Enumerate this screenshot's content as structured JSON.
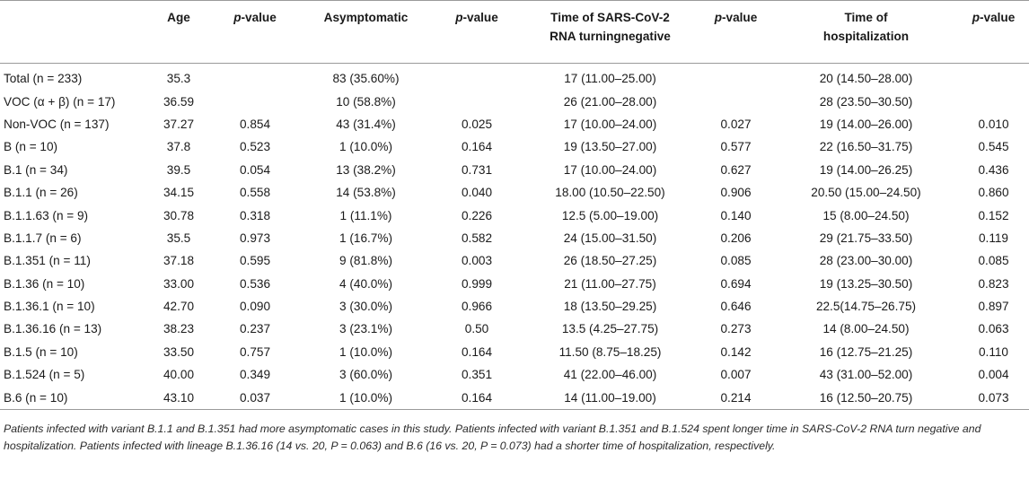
{
  "header": {
    "variant": "",
    "age": "Age",
    "p1": "p",
    "p1_suffix": "-value",
    "asymptomatic": "Asymptomatic",
    "p2": "p",
    "p2_suffix": "-value",
    "turn_line1": "Time of SARS-CoV-2",
    "turn_line2": "RNA turningnegative",
    "p3": "p",
    "p3_suffix": "-value",
    "hosp_line1": "Time of",
    "hosp_line2": "hospitalization",
    "p4": "p",
    "p4_suffix": "-value"
  },
  "rows": [
    {
      "variant": "Total (n = 233)",
      "age": "35.3",
      "p_age": "",
      "asym": "83 (35.60%)",
      "p_asym": "",
      "turn": "17 (11.00–25.00)",
      "p_turn": "",
      "hosp": "20 (14.50–28.00)",
      "p_hosp": ""
    },
    {
      "variant": "VOC (α + β) (n = 17)",
      "age": "36.59",
      "p_age": "",
      "asym": "10 (58.8%)",
      "p_asym": "",
      "turn": "26 (21.00–28.00)",
      "p_turn": "",
      "hosp": "28 (23.50–30.50)",
      "p_hosp": ""
    },
    {
      "variant": "Non-VOC (n = 137)",
      "age": "37.27",
      "p_age": "0.854",
      "asym": "43 (31.4%)",
      "p_asym": "0.025",
      "turn": "17 (10.00–24.00)",
      "p_turn": "0.027",
      "hosp": "19 (14.00–26.00)",
      "p_hosp": "0.010"
    },
    {
      "variant": "B (n = 10)",
      "age": "37.8",
      "p_age": "0.523",
      "asym": "1 (10.0%)",
      "p_asym": "0.164",
      "turn": "19 (13.50–27.00)",
      "p_turn": "0.577",
      "hosp": "22 (16.50–31.75)",
      "p_hosp": "0.545"
    },
    {
      "variant": "B.1 (n = 34)",
      "age": "39.5",
      "p_age": "0.054",
      "asym": "13 (38.2%)",
      "p_asym": "0.731",
      "turn": "17 (10.00–24.00)",
      "p_turn": "0.627",
      "hosp": "19 (14.00–26.25)",
      "p_hosp": "0.436"
    },
    {
      "variant": "B.1.1 (n = 26)",
      "age": "34.15",
      "p_age": "0.558",
      "asym": "14 (53.8%)",
      "p_asym": "0.040",
      "turn": "18.00 (10.50–22.50)",
      "p_turn": "0.906",
      "hosp": "20.50 (15.00–24.50)",
      "p_hosp": "0.860"
    },
    {
      "variant": "B.1.1.63 (n = 9)",
      "age": "30.78",
      "p_age": "0.318",
      "asym": "1 (11.1%)",
      "p_asym": "0.226",
      "turn": "12.5 (5.00–19.00)",
      "p_turn": "0.140",
      "hosp": "15 (8.00–24.50)",
      "p_hosp": "0.152"
    },
    {
      "variant": "B.1.1.7 (n = 6)",
      "age": "35.5",
      "p_age": "0.973",
      "asym": "1 (16.7%)",
      "p_asym": "0.582",
      "turn": "24 (15.00–31.50)",
      "p_turn": "0.206",
      "hosp": "29 (21.75–33.50)",
      "p_hosp": "0.119"
    },
    {
      "variant": "B.1.351 (n = 11)",
      "age": "37.18",
      "p_age": "0.595",
      "asym": "9 (81.8%)",
      "p_asym": "0.003",
      "turn": "26 (18.50–27.25)",
      "p_turn": "0.085",
      "hosp": "28 (23.00–30.00)",
      "p_hosp": "0.085"
    },
    {
      "variant": "B.1.36 (n = 10)",
      "age": "33.00",
      "p_age": "0.536",
      "asym": "4 (40.0%)",
      "p_asym": "0.999",
      "turn": "21 (11.00–27.75)",
      "p_turn": "0.694",
      "hosp": "19 (13.25–30.50)",
      "p_hosp": "0.823"
    },
    {
      "variant": "B.1.36.1 (n = 10)",
      "age": "42.70",
      "p_age": "0.090",
      "asym": "3 (30.0%)",
      "p_asym": "0.966",
      "turn": "18 (13.50–29.25)",
      "p_turn": "0.646",
      "hosp": "22.5(14.75–26.75)",
      "p_hosp": "0.897"
    },
    {
      "variant": "B.1.36.16 (n = 13)",
      "age": "38.23",
      "p_age": "0.237",
      "asym": "3 (23.1%)",
      "p_asym": "0.50",
      "turn": "13.5 (4.25–27.75)",
      "p_turn": "0.273",
      "hosp": "14 (8.00–24.50)",
      "p_hosp": "0.063"
    },
    {
      "variant": "B.1.5 (n = 10)",
      "age": "33.50",
      "p_age": "0.757",
      "asym": "1 (10.0%)",
      "p_asym": "0.164",
      "turn": "11.50 (8.75–18.25)",
      "p_turn": "0.142",
      "hosp": "16 (12.75–21.25)",
      "p_hosp": "0.110"
    },
    {
      "variant": "B.1.524 (n = 5)",
      "age": "40.00",
      "p_age": "0.349",
      "asym": "3 (60.0%)",
      "p_asym": "0.351",
      "turn": "41 (22.00–46.00)",
      "p_turn": "0.007",
      "hosp": "43 (31.00–52.00)",
      "p_hosp": "0.004"
    },
    {
      "variant": "B.6 (n = 10)",
      "age": "43.10",
      "p_age": "0.037",
      "asym": "1 (10.0%)",
      "p_asym": "0.164",
      "turn": "14 (11.00–19.00)",
      "p_turn": "0.214",
      "hosp": "16 (12.50–20.75)",
      "p_hosp": "0.073"
    }
  ],
  "footnote": "Patients infected with variant B.1.1 and B.1.351 had more asymptomatic cases in this study. Patients infected with variant B.1.351 and B.1.524 spent longer time in SARS-CoV-2 RNA turn negative and hospitalization. Patients infected with lineage B.1.36.16 (14 vs. 20, P = 0.063) and B.6 (16 vs. 20, P = 0.073) had a shorter time of hospitalization, respectively."
}
